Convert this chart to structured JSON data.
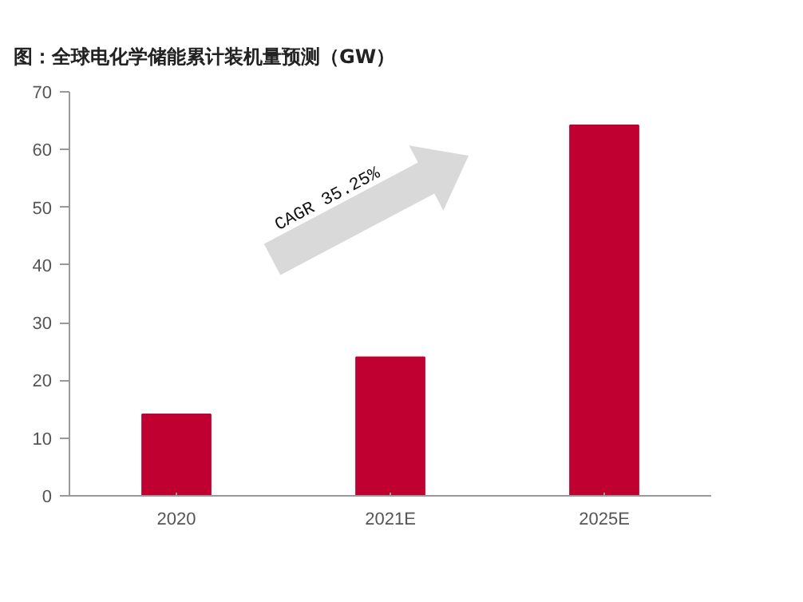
{
  "chart_data": {
    "type": "bar",
    "title": "图：全球电化学储能累计装机量预测（GW）",
    "categories": [
      "2020",
      "2021E",
      "2025E"
    ],
    "values": [
      14.1,
      24.0,
      64.2
    ],
    "color": "#c00030",
    "ylim": [
      0,
      70
    ],
    "yticks": [
      0,
      10,
      20,
      30,
      40,
      50,
      60,
      70
    ],
    "grid": false,
    "annotations": [
      "CAGR 35.25%"
    ]
  }
}
